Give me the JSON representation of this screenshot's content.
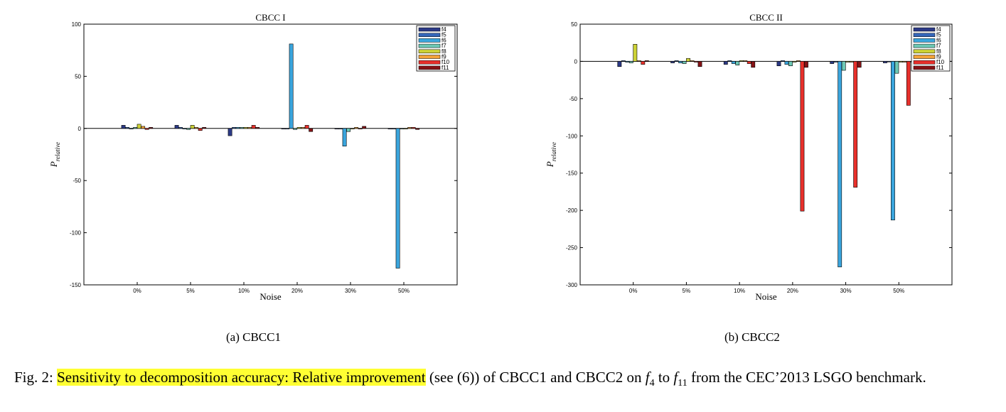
{
  "chart_data": [
    {
      "type": "bar",
      "title": "CBCC I",
      "xlabel": "Noise",
      "ylabel": "P",
      "ylabel_sub": "relative",
      "categories": [
        "0%",
        "5%",
        "10%",
        "20%",
        "30%",
        "50%"
      ],
      "ylim": [
        -150,
        100
      ],
      "yticks": [
        100,
        50,
        0,
        -50,
        -100,
        -150
      ],
      "ytick_labels": [
        "100",
        "50",
        "0",
        "-50",
        "-100",
        "-150"
      ],
      "legend_loc": "top-right",
      "series": [
        {
          "name": "f4",
          "color": "#2c3a87",
          "values": [
            3,
            3,
            -7,
            0,
            0,
            0
          ]
        },
        {
          "name": "f5",
          "color": "#3566b8",
          "values": [
            1,
            1,
            1,
            0,
            0,
            0
          ]
        },
        {
          "name": "f6",
          "color": "#3aa5dd",
          "values": [
            0,
            0,
            1,
            81,
            -17,
            -134
          ]
        },
        {
          "name": "f7",
          "color": "#6ec9b5",
          "values": [
            1,
            -1,
            1,
            -1,
            -3,
            0
          ]
        },
        {
          "name": "f8",
          "color": "#cdd236",
          "values": [
            4,
            3,
            1,
            1,
            0,
            0
          ]
        },
        {
          "name": "f9",
          "color": "#f2a23a",
          "values": [
            2,
            1,
            1,
            1,
            1,
            1
          ]
        },
        {
          "name": "f10",
          "color": "#e8302b",
          "values": [
            -1,
            -2,
            3,
            3,
            0,
            1
          ]
        },
        {
          "name": "f11",
          "color": "#861316",
          "values": [
            1,
            1,
            1,
            -3,
            2,
            -1
          ]
        }
      ],
      "subcaption": "(a) CBCC1"
    },
    {
      "type": "bar",
      "title": "CBCC II",
      "xlabel": "Noise",
      "ylabel": "P",
      "ylabel_sub": "relative",
      "categories": [
        "0%",
        "5%",
        "10%",
        "20%",
        "30%",
        "50%"
      ],
      "ylim": [
        -300,
        50
      ],
      "yticks": [
        50,
        0,
        -50,
        -100,
        -150,
        -200,
        -250,
        -300
      ],
      "ytick_labels": [
        "50",
        "0",
        "-50",
        "-100",
        "-150",
        "-200",
        "-250",
        "-300"
      ],
      "legend_loc": "top-right",
      "series": [
        {
          "name": "f4",
          "color": "#2c3a87",
          "values": [
            -7,
            -2,
            -4,
            -6,
            -3,
            -2
          ]
        },
        {
          "name": "f5",
          "color": "#3566b8",
          "values": [
            1,
            1,
            1,
            1,
            -1,
            0
          ]
        },
        {
          "name": "f6",
          "color": "#3aa5dd",
          "values": [
            -1,
            -2,
            -3,
            -4,
            -276,
            -213
          ]
        },
        {
          "name": "f7",
          "color": "#6ec9b5",
          "values": [
            -2,
            -3,
            -5,
            -6,
            -12,
            -16
          ]
        },
        {
          "name": "f8",
          "color": "#cdd236",
          "values": [
            23,
            4,
            1,
            -1,
            -1,
            -1
          ]
        },
        {
          "name": "f9",
          "color": "#f2a23a",
          "values": [
            1,
            1,
            1,
            1,
            -1,
            -1
          ]
        },
        {
          "name": "f10",
          "color": "#e8302b",
          "values": [
            -4,
            -1,
            -3,
            -201,
            -169,
            -59
          ]
        },
        {
          "name": "f11",
          "color": "#861316",
          "values": [
            1,
            -7,
            -8,
            -8,
            -8,
            0
          ]
        }
      ],
      "subcaption": "(b) CBCC2"
    }
  ],
  "caption": {
    "lead": "Fig. 2: ",
    "highlight": "Sensitivity to decomposition accuracy: Relative improvement",
    "mid": " (see (6)) of CBCC1 and CBCC2 on ",
    "f_from": "f",
    "f_from_sub": "4",
    "to_word": " to ",
    "f_to": "f",
    "f_to_sub": "11",
    "tail": " from the CEC’2013 LSGO benchmark."
  }
}
